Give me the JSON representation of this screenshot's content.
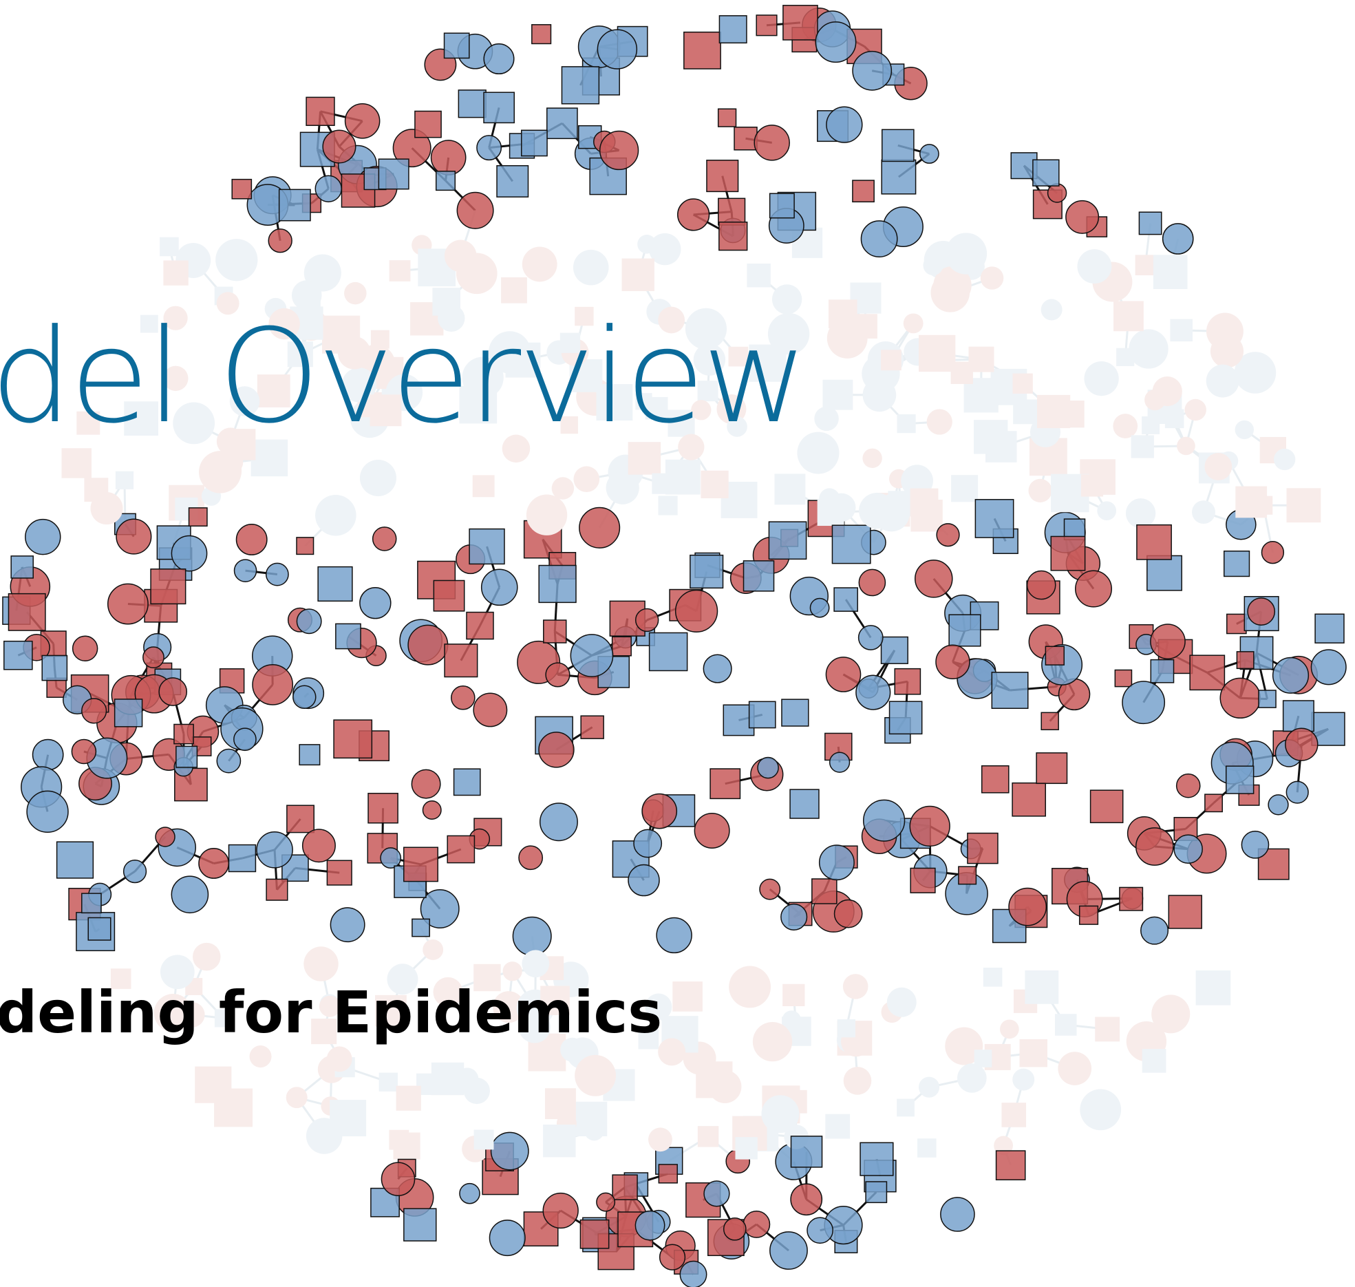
{
  "title": "del Overview",
  "subtitle": "deling for Epidemics"
}
